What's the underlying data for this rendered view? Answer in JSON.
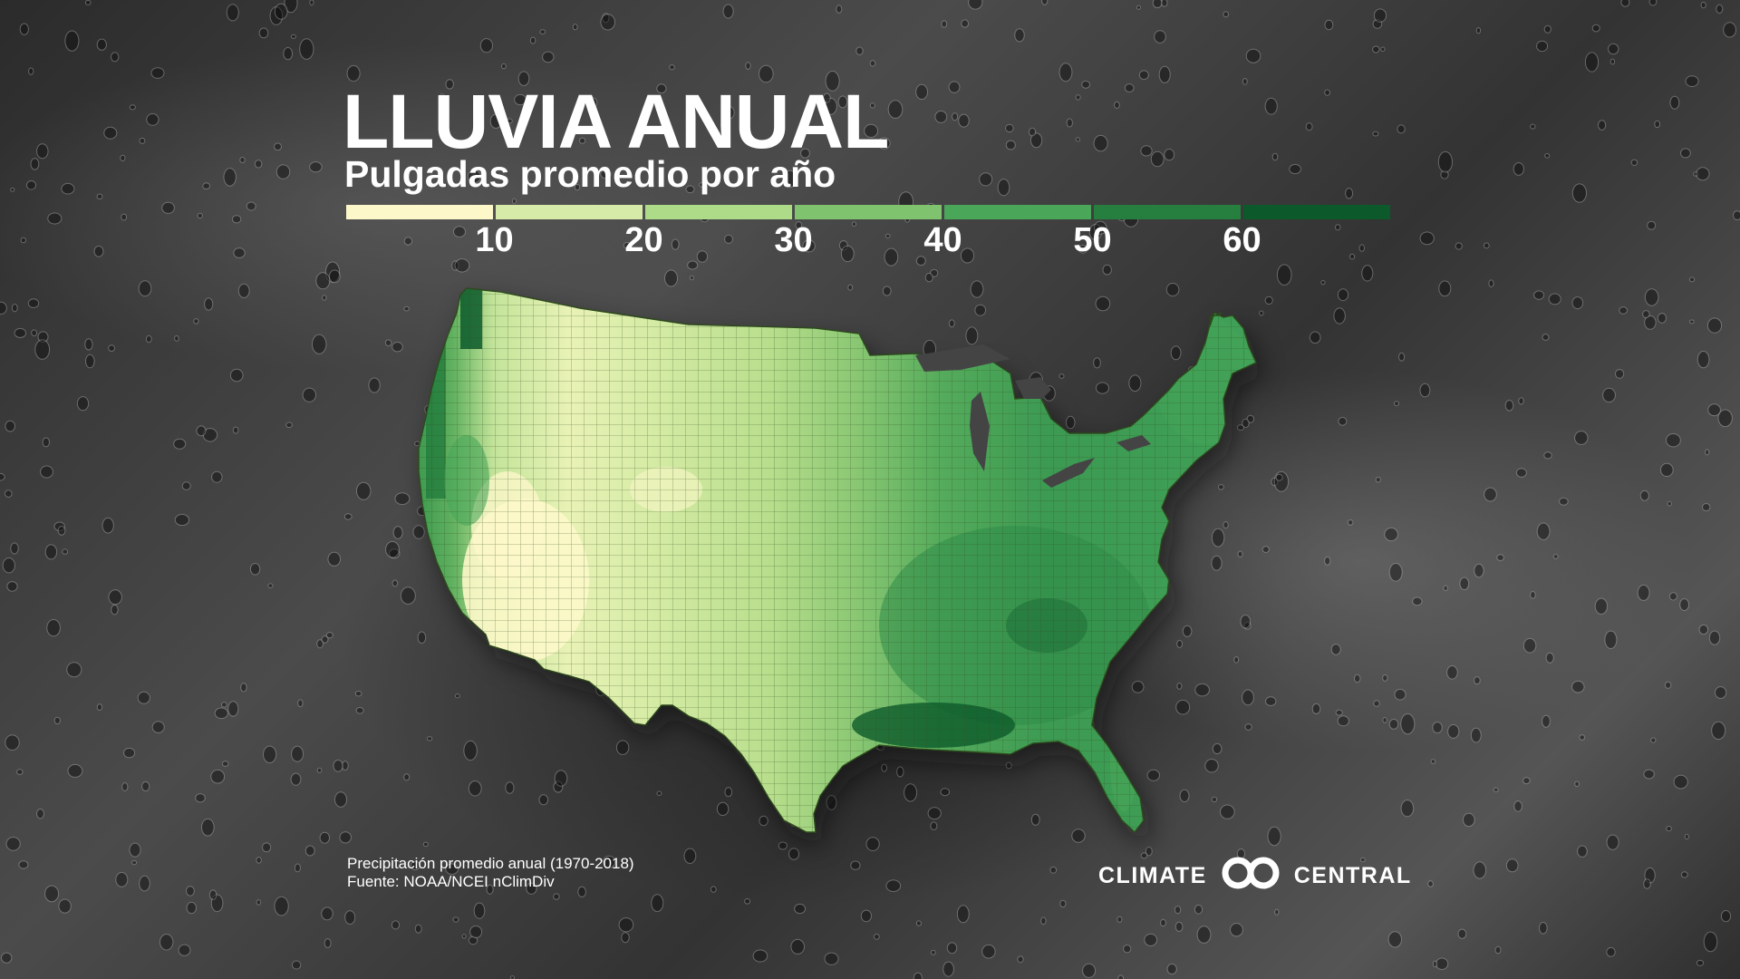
{
  "title": "LLUVIA ANUAL",
  "subtitle": "Pulgadas promedio por año",
  "legend": {
    "colors": [
      "#fcf8c9",
      "#d6eba8",
      "#aedb87",
      "#7fc36f",
      "#4aa75a",
      "#267f3e",
      "#0c5a2b"
    ],
    "ticks": [
      "10",
      "20",
      "30",
      "40",
      "50",
      "60"
    ]
  },
  "source": {
    "line1": "Precipitación promedio anual (1970-2018)",
    "line2": "Fuente: NOAA/NCEI nClimDiv"
  },
  "logo": {
    "left": "CLIMATE",
    "right": "CENTRAL",
    "icon": "climate-central-rings-icon"
  }
}
